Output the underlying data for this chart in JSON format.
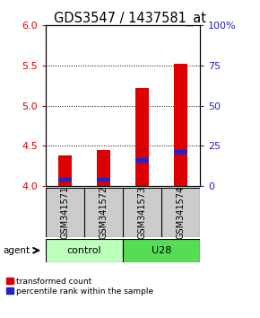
{
  "title": "GDS3547 / 1437581_at",
  "categories": [
    "GSM341571",
    "GSM341572",
    "GSM341573",
    "GSM341574"
  ],
  "transformed_counts": [
    4.38,
    4.45,
    5.22,
    5.52
  ],
  "percentile_ranks": [
    4.08,
    4.08,
    4.32,
    4.42
  ],
  "ylim": [
    4.0,
    6.0
  ],
  "yticks_left": [
    4.0,
    4.5,
    5.0,
    5.5,
    6.0
  ],
  "bar_bottom": 4.0,
  "red_color": "#dd0000",
  "blue_color": "#2222cc",
  "group_labels": [
    "control",
    "U28"
  ],
  "group_colors_light": "#bbffbb",
  "group_colors_dark": "#55dd55",
  "sample_bg_color": "#cccccc",
  "agent_label": "agent",
  "legend_red": "transformed count",
  "legend_blue": "percentile rank within the sample",
  "bar_width": 0.35,
  "title_fontsize": 10.5,
  "axis_fontsize": 8.5,
  "tick_fontsize": 8
}
